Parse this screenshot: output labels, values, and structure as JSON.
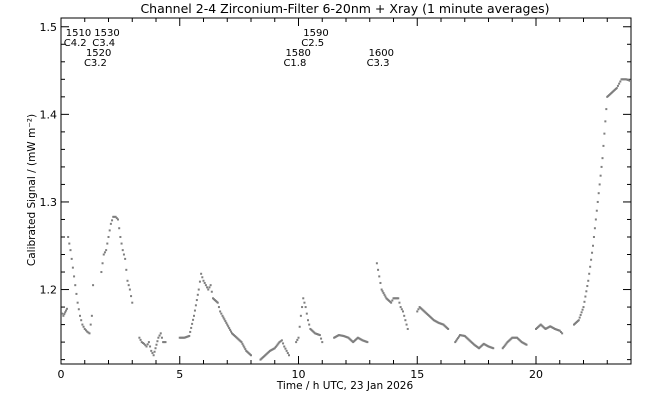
{
  "chart_data": {
    "type": "scatter",
    "title": "Channel 2-4   Zirconium-Filter   6-20nm + Xray   (1 minute averages)",
    "xlabel": "Time / h UTC, 23 Jan 2026",
    "ylabel": "Calibrated Signal / (mW m⁻²)",
    "xlim": [
      0,
      24
    ],
    "ylim": [
      1.115,
      1.51
    ],
    "x_ticks": [
      0,
      5,
      10,
      15,
      20
    ],
    "x_tick_labels": [
      "0",
      "5",
      "10",
      "15",
      "20"
    ],
    "y_ticks": [
      1.2,
      1.3,
      1.4,
      1.5
    ],
    "y_tick_labels": [
      "1.2",
      "1.3",
      "1.4",
      "1.5"
    ],
    "grid": false,
    "legend": "none",
    "marker_color": "#7f7f7f",
    "flare_annotations": [
      {
        "time": "1510",
        "class": "C4.2",
        "x": 0.2,
        "row": 1
      },
      {
        "time": "1530",
        "class": "C3.4",
        "x": 1.4,
        "row": 1
      },
      {
        "time": "1520",
        "class": "C3.2",
        "x": 1.05,
        "row": 2
      },
      {
        "time": "1590",
        "class": "C2.5",
        "x": 10.2,
        "row": 1
      },
      {
        "time": "1580",
        "class": "C1.8",
        "x": 9.45,
        "row": 2
      },
      {
        "time": "1600",
        "class": "C3.3",
        "x": 12.95,
        "row": 2
      }
    ],
    "series": [
      {
        "points": [
          [
            0.0,
            1.175
          ],
          [
            0.1,
            1.17
          ],
          [
            0.25,
            1.178
          ],
          [
            0.3,
            1.26
          ],
          [
            0.4,
            1.245
          ],
          [
            0.5,
            1.225
          ],
          [
            0.6,
            1.205
          ],
          [
            0.7,
            1.185
          ],
          [
            0.8,
            1.17
          ],
          [
            0.9,
            1.16
          ],
          [
            1.0,
            1.155
          ],
          [
            1.1,
            1.152
          ],
          [
            1.2,
            1.15
          ],
          [
            1.3,
            1.17
          ],
          [
            1.35,
            1.205
          ],
          [
            1.7,
            1.22
          ],
          [
            1.8,
            1.24
          ],
          [
            1.9,
            1.245
          ],
          [
            2.0,
            1.26
          ],
          [
            2.1,
            1.275
          ],
          [
            2.2,
            1.283
          ],
          [
            2.3,
            1.283
          ],
          [
            2.4,
            1.28
          ],
          [
            2.5,
            1.26
          ],
          [
            2.6,
            1.245
          ],
          [
            2.7,
            1.235
          ],
          [
            2.8,
            1.21
          ],
          [
            2.9,
            1.2
          ],
          [
            3.0,
            1.185
          ],
          [
            3.3,
            1.145
          ],
          [
            3.4,
            1.14
          ],
          [
            3.5,
            1.138
          ],
          [
            3.6,
            1.135
          ],
          [
            3.7,
            1.14
          ],
          [
            3.8,
            1.13
          ],
          [
            3.9,
            1.125
          ],
          [
            4.1,
            1.145
          ],
          [
            4.2,
            1.15
          ],
          [
            4.3,
            1.14
          ],
          [
            4.4,
            1.14
          ],
          [
            5.0,
            1.145
          ],
          [
            5.2,
            1.145
          ],
          [
            5.4,
            1.147
          ],
          [
            5.6,
            1.17
          ],
          [
            5.8,
            1.2
          ],
          [
            5.9,
            1.218
          ],
          [
            6.0,
            1.21
          ],
          [
            6.1,
            1.205
          ],
          [
            6.2,
            1.2
          ],
          [
            6.3,
            1.205
          ],
          [
            6.4,
            1.19
          ],
          [
            6.6,
            1.185
          ],
          [
            6.7,
            1.175
          ],
          [
            6.8,
            1.17
          ],
          [
            7.0,
            1.16
          ],
          [
            7.2,
            1.15
          ],
          [
            7.4,
            1.145
          ],
          [
            7.6,
            1.14
          ],
          [
            7.8,
            1.13
          ],
          [
            8.0,
            1.125
          ],
          [
            8.4,
            1.12
          ],
          [
            8.6,
            1.125
          ],
          [
            8.8,
            1.13
          ],
          [
            9.0,
            1.133
          ],
          [
            9.2,
            1.14
          ],
          [
            9.3,
            1.142
          ],
          [
            9.4,
            1.135
          ],
          [
            9.5,
            1.13
          ],
          [
            9.6,
            1.125
          ],
          [
            9.9,
            1.14
          ],
          [
            10.0,
            1.145
          ],
          [
            10.1,
            1.17
          ],
          [
            10.2,
            1.19
          ],
          [
            10.3,
            1.18
          ],
          [
            10.4,
            1.165
          ],
          [
            10.5,
            1.155
          ],
          [
            10.7,
            1.15
          ],
          [
            10.9,
            1.148
          ],
          [
            11.0,
            1.14
          ],
          [
            11.5,
            1.145
          ],
          [
            11.7,
            1.148
          ],
          [
            11.9,
            1.147
          ],
          [
            12.1,
            1.145
          ],
          [
            12.3,
            1.14
          ],
          [
            12.5,
            1.145
          ],
          [
            12.7,
            1.142
          ],
          [
            12.9,
            1.14
          ],
          [
            13.3,
            1.23
          ],
          [
            13.4,
            1.215
          ],
          [
            13.5,
            1.2
          ],
          [
            13.7,
            1.19
          ],
          [
            13.9,
            1.185
          ],
          [
            14.0,
            1.19
          ],
          [
            14.2,
            1.19
          ],
          [
            14.3,
            1.18
          ],
          [
            14.4,
            1.175
          ],
          [
            14.5,
            1.165
          ],
          [
            14.6,
            1.155
          ],
          [
            15.0,
            1.175
          ],
          [
            15.1,
            1.18
          ],
          [
            15.3,
            1.175
          ],
          [
            15.5,
            1.17
          ],
          [
            15.7,
            1.165
          ],
          [
            15.9,
            1.162
          ],
          [
            16.1,
            1.16
          ],
          [
            16.3,
            1.155
          ],
          [
            16.6,
            1.14
          ],
          [
            16.8,
            1.148
          ],
          [
            17.0,
            1.147
          ],
          [
            17.2,
            1.142
          ],
          [
            17.4,
            1.137
          ],
          [
            17.6,
            1.133
          ],
          [
            17.8,
            1.138
          ],
          [
            18.0,
            1.135
          ],
          [
            18.2,
            1.133
          ],
          [
            18.6,
            1.133
          ],
          [
            18.8,
            1.14
          ],
          [
            19.0,
            1.145
          ],
          [
            19.2,
            1.145
          ],
          [
            19.4,
            1.14
          ],
          [
            19.6,
            1.137
          ],
          [
            20.0,
            1.155
          ],
          [
            20.2,
            1.16
          ],
          [
            20.4,
            1.155
          ],
          [
            20.6,
            1.158
          ],
          [
            20.8,
            1.155
          ],
          [
            21.0,
            1.153
          ],
          [
            21.1,
            1.15
          ],
          [
            21.6,
            1.16
          ],
          [
            21.8,
            1.165
          ],
          [
            22.0,
            1.18
          ],
          [
            22.2,
            1.21
          ],
          [
            22.4,
            1.25
          ],
          [
            22.6,
            1.3
          ],
          [
            22.8,
            1.35
          ],
          [
            23.0,
            1.42
          ],
          [
            23.2,
            1.425
          ],
          [
            23.4,
            1.43
          ],
          [
            23.5,
            1.435
          ],
          [
            23.6,
            1.44
          ],
          [
            23.8,
            1.44
          ],
          [
            24.0,
            1.438
          ]
        ]
      }
    ]
  }
}
